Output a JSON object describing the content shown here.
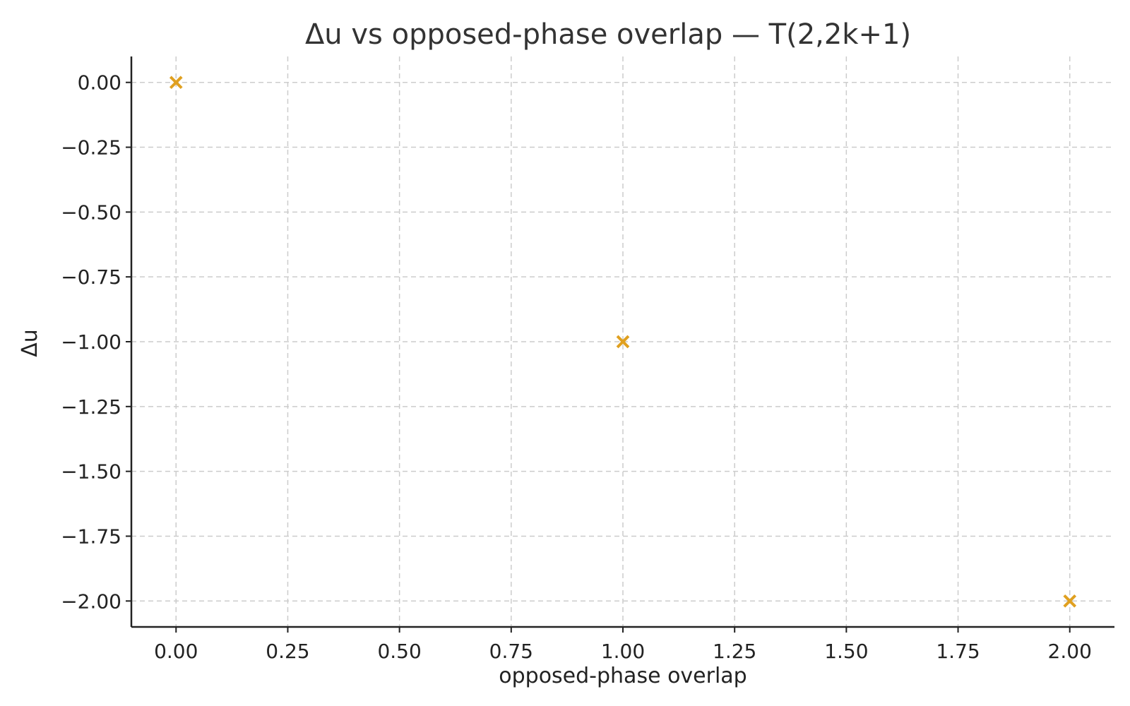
{
  "chart_data": {
    "type": "scatter",
    "title": "Δu vs opposed-phase overlap — T(2,2k+1)",
    "xlabel": "opposed-phase overlap",
    "ylabel": "Δu",
    "xlim": [
      -0.1,
      2.1
    ],
    "ylim": [
      -2.1,
      0.1
    ],
    "x_ticks": [
      0.0,
      0.25,
      0.5,
      0.75,
      1.0,
      1.25,
      1.5,
      1.75,
      2.0
    ],
    "x_tick_labels": [
      "0.00",
      "0.25",
      "0.50",
      "0.75",
      "1.00",
      "1.25",
      "1.50",
      "1.75",
      "2.00"
    ],
    "y_ticks": [
      0.0,
      -0.25,
      -0.5,
      -0.75,
      -1.0,
      -1.25,
      -1.5,
      -1.75,
      -2.0
    ],
    "y_tick_labels": [
      "0.00",
      "−0.25",
      "−0.50",
      "−0.75",
      "−1.00",
      "−1.25",
      "−1.50",
      "−1.75",
      "−2.00"
    ],
    "grid": true,
    "marker": "x",
    "marker_color": "#E0A020",
    "series": [
      {
        "points": [
          {
            "x": 0,
            "y": 0
          },
          {
            "x": 1,
            "y": -1
          },
          {
            "x": 2,
            "y": -2
          }
        ]
      }
    ]
  }
}
